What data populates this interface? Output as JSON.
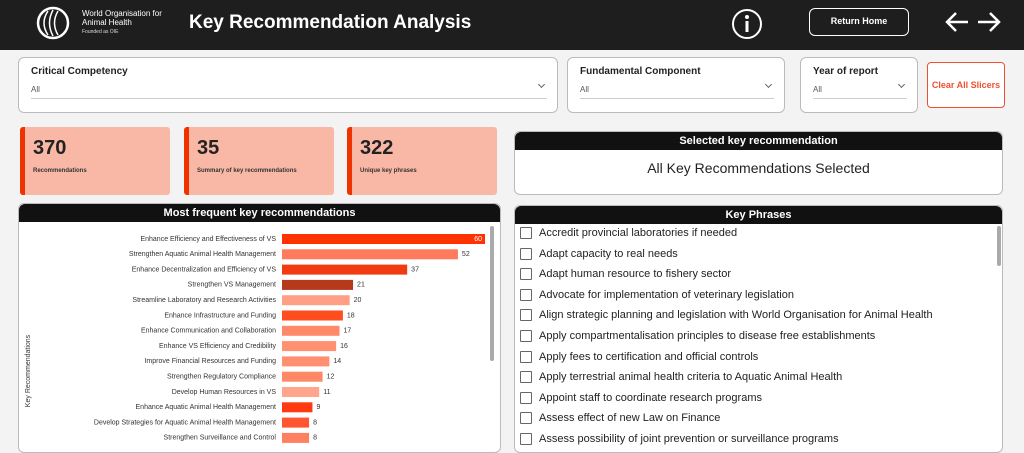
{
  "header": {
    "org_name": "World Organisation for Animal Health",
    "org_sub": "Founded as OIE",
    "title": "Key Recommendation Analysis",
    "return_button": "Return Home"
  },
  "slicers": [
    {
      "label": "Critical Competency",
      "value": "All"
    },
    {
      "label": "Fundamental Component",
      "value": "All"
    },
    {
      "label": "Year of report",
      "value": "All"
    }
  ],
  "clear_button": "Clear All Slicers",
  "cards": [
    {
      "value": 370,
      "label": "Recommendations"
    },
    {
      "value": 35,
      "label": "Summary of key recommendations"
    },
    {
      "value": 322,
      "label": "Unique key phrases"
    }
  ],
  "selected": {
    "title": "Selected key recommendation",
    "text": "All Key Recommendations Selected"
  },
  "chart_data": {
    "type": "hbar",
    "title": "Most frequent key recommendations",
    "y_label": "Key Recommendations",
    "categories": [
      "Enhance Efficiency and Effectiveness of VS",
      "Strengthen Aquatic Animal Health Management",
      "Enhance Decentralization and Efficiency of VS",
      "Strengthen VS Management",
      "Streamline Laboratory and Research Activities",
      "Enhance Infrastructure and Funding",
      "Enhance Communication and Collaboration",
      "Enhance VS Efficiency and Credibility",
      "Improve Financial Resources and Funding",
      "Strengthen Regulatory Compliance",
      "Develop Human Resources in VS",
      "Enhance Aquatic Animal Health Management",
      "Develop Strategies for Aquatic Animal Health Management",
      "Strengthen Surveillance and Control"
    ],
    "values": [
      60,
      52,
      37,
      21,
      20,
      18,
      17,
      16,
      14,
      12,
      11,
      9,
      8,
      8
    ],
    "colors": [
      "#ff3300",
      "#ff7b5c",
      "#f03c10",
      "#b5391a",
      "#ff9f85",
      "#ff4d1f",
      "#ff8a6a",
      "#ff9070",
      "#ff8f70",
      "#ff8866",
      "#ffa58c",
      "#ff3a10",
      "#ff5530",
      "#ff8060"
    ],
    "xlim": [
      0,
      60
    ]
  },
  "key_phrases": {
    "title": "Key Phrases",
    "items": [
      "Accredit provincial laboratories if needed",
      "Adapt capacity to real needs",
      "Adapt human resource to fishery sector",
      "Advocate for implementation of veterinary legislation",
      "Align strategic planning and legislation with World Organisation for Animal Health",
      "Apply compartmentalisation principles to disease free establishments",
      "Apply fees to certification and official controls",
      "Apply terrestrial animal health criteria to Aquatic Animal Health",
      "Appoint staff to coordinate research programs",
      "Assess effect of new Law on Finance",
      "Assess possibility of joint prevention or surveillance programs"
    ]
  }
}
